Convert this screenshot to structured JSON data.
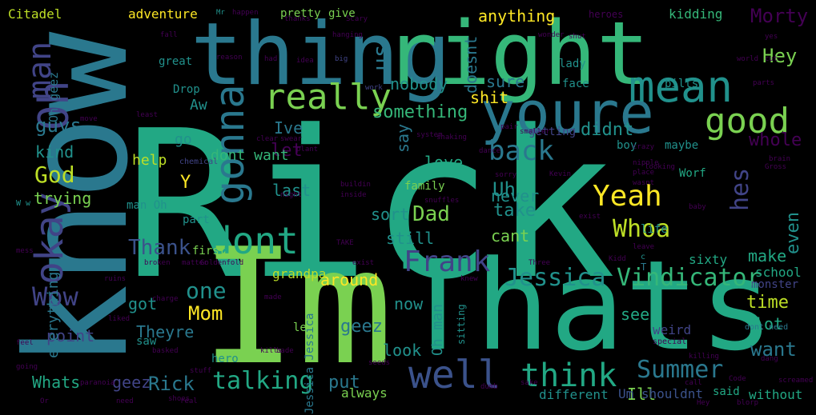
{
  "palette": {
    "background": "#000000",
    "purple": "#440154",
    "indigo": "#414487",
    "blue": "#2a788e",
    "teal": "#22a884",
    "green": "#7ad151",
    "lime": "#bddf26",
    "yellow": "#fde725"
  },
  "words": [
    {
      "text": "Rick",
      "color": "#22a884"
    },
    {
      "text": "know",
      "color": "#2a788e"
    },
    {
      "text": "Im",
      "color": "#7ad151"
    },
    {
      "text": "Thats",
      "color": "#22a884"
    },
    {
      "text": "thing",
      "color": "#2a788e"
    },
    {
      "text": "right",
      "color": "#35b779"
    },
    {
      "text": "youre",
      "color": "#2a788e"
    },
    {
      "text": "mean",
      "color": "#21918c"
    },
    {
      "text": "Oh",
      "color": "#414487"
    },
    {
      "text": "gonna",
      "color": "#2a788e"
    },
    {
      "text": "dont",
      "color": "#22a884"
    },
    {
      "text": "really",
      "color": "#7ad151"
    },
    {
      "text": "good",
      "color": "#7ad151"
    },
    {
      "text": "man",
      "color": "#414487"
    },
    {
      "text": "okay",
      "color": "#414487"
    },
    {
      "text": "well",
      "color": "#3b528b"
    },
    {
      "text": "think",
      "color": "#22a884"
    },
    {
      "text": "talking",
      "color": "#22a884"
    },
    {
      "text": "Summer",
      "color": "#2a788e"
    },
    {
      "text": "Jessica",
      "color": "#21918c"
    },
    {
      "text": "Vindicator",
      "color": "#35b779"
    },
    {
      "text": "Yeah",
      "color": "#fde725"
    },
    {
      "text": "Whoa",
      "color": "#bddf26"
    },
    {
      "text": "back",
      "color": "#2a788e"
    },
    {
      "text": "Wow",
      "color": "#414487"
    },
    {
      "text": "Hey",
      "color": "#7ad151"
    },
    {
      "text": "Dad",
      "color": "#7ad151"
    },
    {
      "text": "Uh",
      "color": "#21918c"
    },
    {
      "text": "God",
      "color": "#bddf26"
    },
    {
      "text": "guys",
      "color": "#2a788e"
    },
    {
      "text": "hes",
      "color": "#414487"
    },
    {
      "text": "one",
      "color": "#21918c"
    },
    {
      "text": "Thank",
      "color": "#3b528b"
    },
    {
      "text": "Mom",
      "color": "#fde725"
    },
    {
      "text": "want",
      "color": "#2a788e"
    },
    {
      "text": "whole",
      "color": "#440154"
    },
    {
      "text": "didnt",
      "color": "#21918c"
    },
    {
      "text": "us",
      "color": "#2a788e"
    },
    {
      "text": "Morty",
      "color": "#440154"
    },
    {
      "text": "even",
      "color": "#21918c"
    },
    {
      "text": "time",
      "color": "#bddf26"
    },
    {
      "text": "Whats",
      "color": "#22a884"
    },
    {
      "text": "geez",
      "color": "#414487"
    },
    {
      "text": "Rick",
      "color": "#2a788e"
    },
    {
      "text": "Theyre",
      "color": "#2a788e"
    },
    {
      "text": "Ill",
      "color": "#7ad151"
    },
    {
      "text": "put",
      "color": "#2a788e"
    },
    {
      "text": "look",
      "color": "#21918c"
    },
    {
      "text": "see",
      "color": "#22a884"
    },
    {
      "text": "lot",
      "color": "#22a884"
    },
    {
      "text": "make",
      "color": "#22a884"
    },
    {
      "text": "sure",
      "color": "#2a788e"
    },
    {
      "text": "shit",
      "color": "#fde725"
    },
    {
      "text": "something",
      "color": "#35b779"
    },
    {
      "text": "nobody",
      "color": "#21918c"
    },
    {
      "text": "anything",
      "color": "#fde725"
    },
    {
      "text": "let",
      "color": "#440154"
    },
    {
      "text": "say",
      "color": "#2a788e"
    },
    {
      "text": "take",
      "color": "#21918c"
    },
    {
      "text": "cant",
      "color": "#7ad151"
    },
    {
      "text": "never",
      "color": "#21918c"
    },
    {
      "text": "still",
      "color": "#21918c"
    },
    {
      "text": "sort",
      "color": "#21918c"
    },
    {
      "text": "around",
      "color": "#fde725"
    },
    {
      "text": "now",
      "color": "#21918c"
    },
    {
      "text": "geez",
      "color": "#2a788e"
    },
    {
      "text": "got",
      "color": "#21918c"
    },
    {
      "text": "point",
      "color": "#414487"
    },
    {
      "text": "everything",
      "color": "#2a788e"
    },
    {
      "text": "trying",
      "color": "#7ad151"
    },
    {
      "text": "kind",
      "color": "#21918c"
    },
    {
      "text": "help",
      "color": "#bddf26"
    },
    {
      "text": "last",
      "color": "#21918c"
    },
    {
      "text": "Aw",
      "color": "#21918c"
    },
    {
      "text": "Ive",
      "color": "#2a788e"
    },
    {
      "text": "love",
      "color": "#22a884"
    },
    {
      "text": "dont want",
      "color": "#35b779"
    },
    {
      "text": "Y",
      "color": "#fde725"
    },
    {
      "text": "go",
      "color": "#21918c"
    },
    {
      "text": "Oh man",
      "color": "#21918c"
    },
    {
      "text": "Oh geez",
      "color": "#2a788e"
    },
    {
      "text": "adventure",
      "color": "#fde725"
    },
    {
      "text": "pretty",
      "color": "#7ad151"
    },
    {
      "text": "give",
      "color": "#7ad151"
    },
    {
      "text": "Citadel",
      "color": "#bddf26"
    },
    {
      "text": "always",
      "color": "#7ad151"
    },
    {
      "text": "different",
      "color": "#21918c"
    },
    {
      "text": "without",
      "color": "#22a884"
    },
    {
      "text": "Um shouldnt",
      "color": "#3b528b"
    },
    {
      "text": "said",
      "color": "#22a884"
    },
    {
      "text": "sixty",
      "color": "#22a884"
    },
    {
      "text": "maybe",
      "color": "#21918c"
    },
    {
      "text": "kidding",
      "color": "#35b779"
    },
    {
      "text": "heroes",
      "color": "#440154"
    },
    {
      "text": "family",
      "color": "#7ad151"
    },
    {
      "text": "face",
      "color": "#21918c"
    },
    {
      "text": "doesnt",
      "color": "#2a788e"
    },
    {
      "text": "boy",
      "color": "#21918c"
    },
    {
      "text": "Worf",
      "color": "#22a884"
    },
    {
      "text": "school",
      "color": "#22a884"
    },
    {
      "text": "monster",
      "color": "#414487"
    },
    {
      "text": "life",
      "color": "#21918c"
    },
    {
      "text": "weird",
      "color": "#414487"
    },
    {
      "text": "part",
      "color": "#21918c"
    },
    {
      "text": "man Oh",
      "color": "#21918c"
    },
    {
      "text": "great",
      "color": "#21918c"
    },
    {
      "text": "Drop",
      "color": "#21918c"
    },
    {
      "text": "grandpa",
      "color": "#bddf26"
    },
    {
      "text": "first",
      "color": "#7ad151"
    },
    {
      "text": "leg",
      "color": "#7ad151"
    },
    {
      "text": "saw",
      "color": "#21918c"
    },
    {
      "text": "pills",
      "color": "#21918c"
    },
    {
      "text": "getting",
      "color": "#414487"
    },
    {
      "text": "lady",
      "color": "#21918c"
    },
    {
      "text": "hero",
      "color": "#21918c"
    },
    {
      "text": "Frank",
      "color": "#414487"
    },
    {
      "text": "T",
      "color": "#2a788e"
    },
    {
      "text": "dont need",
      "color": "#2a788e"
    },
    {
      "text": "W w",
      "color": "#21918c"
    },
    {
      "text": "c",
      "color": "#21918c"
    },
    {
      "text": "sitting",
      "color": "#21918c"
    },
    {
      "text": "Jessica Jessica",
      "color": "#2a788e"
    },
    {
      "text": "special",
      "color": "#440154"
    },
    {
      "text": "chemical",
      "color": "#414487"
    },
    {
      "text": "Mr",
      "color": "#21918c"
    },
    {
      "text": "happen",
      "color": "#440154"
    },
    {
      "text": "thanks",
      "color": "#440154"
    },
    {
      "text": "fall",
      "color": "#440154"
    },
    {
      "text": "hanging",
      "color": "#440154"
    },
    {
      "text": "Scary",
      "color": "#440154"
    },
    {
      "text": "wonder",
      "color": "#440154"
    },
    {
      "text": "shut",
      "color": "#440154"
    },
    {
      "text": "yes",
      "color": "#440154"
    },
    {
      "text": "cut",
      "color": "#440154"
    },
    {
      "text": "world",
      "color": "#440154"
    },
    {
      "text": "reason",
      "color": "#440154"
    },
    {
      "text": "had",
      "color": "#440154"
    },
    {
      "text": "idea",
      "color": "#440154"
    },
    {
      "text": "big",
      "color": "#414487"
    },
    {
      "text": "work",
      "color": "#414487"
    },
    {
      "text": "parts",
      "color": "#440154"
    },
    {
      "text": "move",
      "color": "#440154"
    },
    {
      "text": "least",
      "color": "#440154"
    },
    {
      "text": "pair",
      "color": "#440154"
    },
    {
      "text": "shaking",
      "color": "#440154"
    },
    {
      "text": "dance",
      "color": "#440154"
    },
    {
      "text": "sorry",
      "color": "#440154"
    },
    {
      "text": "plant",
      "color": "#440154"
    },
    {
      "text": "crazy",
      "color": "#440154"
    },
    {
      "text": "nipple",
      "color": "#440154"
    },
    {
      "text": "looking",
      "color": "#440154"
    },
    {
      "text": "brain",
      "color": "#440154"
    },
    {
      "text": "Gross",
      "color": "#440154"
    },
    {
      "text": "clear",
      "color": "#440154"
    },
    {
      "text": "swear",
      "color": "#440154"
    },
    {
      "text": "buildin",
      "color": "#440154"
    },
    {
      "text": "inside",
      "color": "#440154"
    },
    {
      "text": "place",
      "color": "#440154"
    },
    {
      "text": "wasnt",
      "color": "#440154"
    },
    {
      "text": "system",
      "color": "#440154"
    },
    {
      "text": "night",
      "color": "#440154"
    },
    {
      "text": "exist",
      "color": "#440154"
    },
    {
      "text": "snuffles",
      "color": "#440154"
    },
    {
      "text": "baby",
      "color": "#440154"
    },
    {
      "text": "leave",
      "color": "#440154"
    },
    {
      "text": "mess",
      "color": "#440154"
    },
    {
      "text": "broken",
      "color": "#440154"
    },
    {
      "text": "matter",
      "color": "#440154"
    },
    {
      "text": "Goldenfold",
      "color": "#440154"
    },
    {
      "text": "TAKE",
      "color": "#440154"
    },
    {
      "text": "Three",
      "color": "#440154"
    },
    {
      "text": "knew",
      "color": "#440154"
    },
    {
      "text": "ruins",
      "color": "#440154"
    },
    {
      "text": "made",
      "color": "#440154"
    },
    {
      "text": "charge",
      "color": "#440154"
    },
    {
      "text": "liked",
      "color": "#440154"
    },
    {
      "text": "basked",
      "color": "#440154"
    },
    {
      "text": "kills",
      "color": "#440154"
    },
    {
      "text": "bade",
      "color": "#440154"
    },
    {
      "text": "dang",
      "color": "#440154"
    },
    {
      "text": "feel",
      "color": "#440154"
    },
    {
      "text": "going",
      "color": "#440154"
    },
    {
      "text": "paranoia",
      "color": "#440154"
    },
    {
      "text": "need",
      "color": "#440154"
    },
    {
      "text": "stuff",
      "color": "#440154"
    },
    {
      "text": "real",
      "color": "#440154"
    },
    {
      "text": "seeds",
      "color": "#440154"
    },
    {
      "text": "dumb",
      "color": "#440154"
    },
    {
      "text": "Or",
      "color": "#440154"
    },
    {
      "text": "shoes",
      "color": "#440154"
    },
    {
      "text": "call",
      "color": "#440154"
    },
    {
      "text": "Code",
      "color": "#440154"
    },
    {
      "text": "sake",
      "color": "#440154"
    },
    {
      "text": "screamed",
      "color": "#440154"
    },
    {
      "text": "killing",
      "color": "#440154"
    },
    {
      "text": "blorp",
      "color": "#440154"
    },
    {
      "text": "Hey",
      "color": "#440154"
    },
    {
      "text": "smaller",
      "color": "#440154"
    },
    {
      "text": "Kevin",
      "color": "#440154"
    },
    {
      "text": "exist",
      "color": "#440154"
    },
    {
      "text": "Kidd",
      "color": "#440154"
    }
  ]
}
